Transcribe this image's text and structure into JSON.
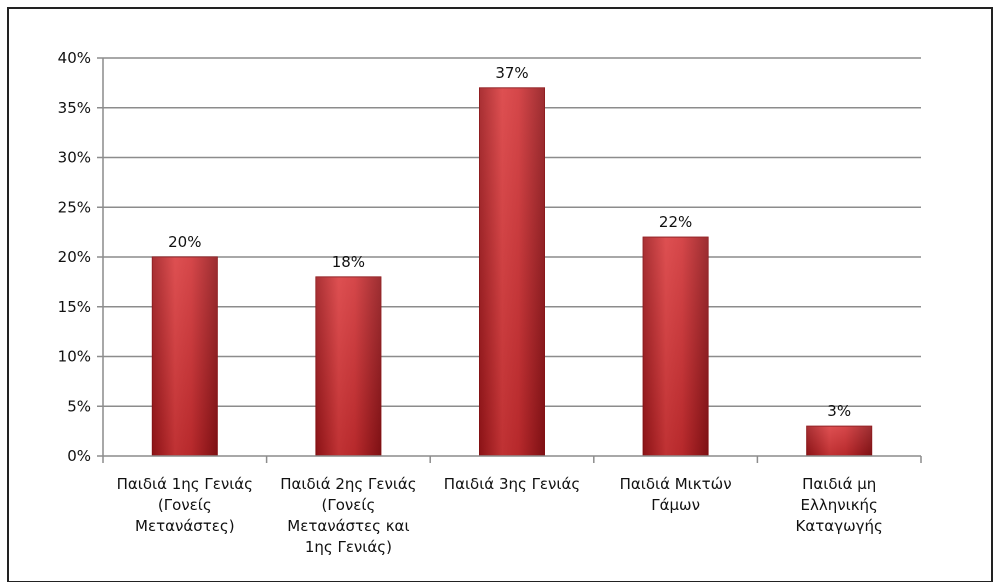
{
  "chart_data": {
    "type": "bar",
    "categories": [
      [
        "Παιδιά 1ης Γενιάς",
        "(Γονείς",
        "Μετανάστες)"
      ],
      [
        "Παιδιά 2ης Γενιάς",
        "(Γονείς",
        "Μετανάστες και",
        "1ης Γενιάς)"
      ],
      [
        "Παιδιά 3ης Γενιάς"
      ],
      [
        "Παιδιά Μικτών",
        "Γάμων"
      ],
      [
        "Παιδιά μη",
        "Ελληνικής",
        "Καταγωγής"
      ]
    ],
    "values": [
      20,
      18,
      37,
      22,
      3
    ],
    "data_labels": [
      "20%",
      "18%",
      "37%",
      "22%",
      "3%"
    ],
    "ylim": [
      0,
      40
    ],
    "yticks": [
      0,
      5,
      10,
      15,
      20,
      25,
      30,
      35,
      40
    ],
    "ytick_labels": [
      "0%",
      "5%",
      "10%",
      "15%",
      "20%",
      "25%",
      "30%",
      "35%",
      "40%"
    ],
    "grid": true,
    "legend": "none",
    "bar_color": "#c8252a",
    "title": "",
    "xlabel": "",
    "ylabel": ""
  }
}
